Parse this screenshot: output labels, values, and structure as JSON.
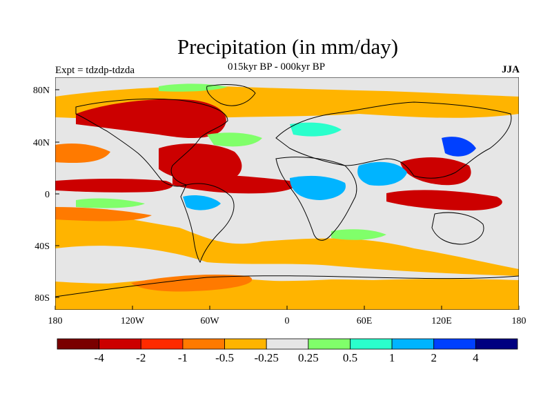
{
  "title": "Precipitation (in mm/day)",
  "subtitle": "015kyr BP - 000kyr BP",
  "left_label": "Expt = tdzdp-tdzda",
  "right_label": "JJA",
  "y_ticks": [
    "80N",
    "40N",
    "0",
    "40S",
    "80S"
  ],
  "x_ticks": [
    "180",
    "120W",
    "60W",
    "0",
    "60E",
    "120E",
    "180"
  ],
  "colorbar": {
    "colors": [
      "#7a0000",
      "#cc0000",
      "#ff2a00",
      "#ff7a00",
      "#ffb400",
      "#e6e6e6",
      "#80ff6a",
      "#2affcc",
      "#00b4ff",
      "#0040ff",
      "#000080"
    ],
    "labels": [
      "-4",
      "-2",
      "-1",
      "-0.5",
      "-0.25",
      "0.25",
      "0.5",
      "1",
      "2",
      "4"
    ]
  },
  "field_colors": {
    "ocean_background": "#e6e6e6",
    "coastline": "#000000"
  }
}
